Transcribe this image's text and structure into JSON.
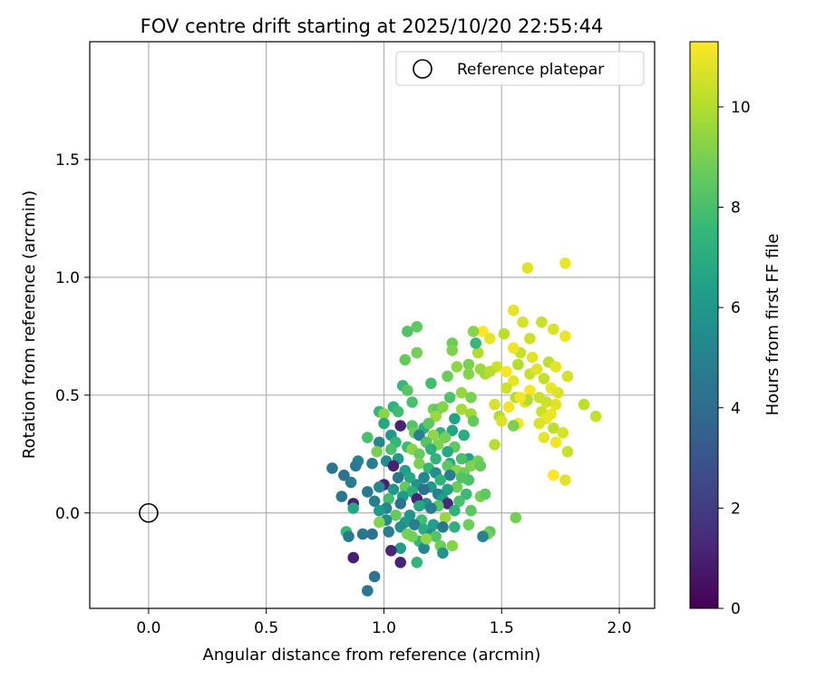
{
  "chart_data": {
    "type": "scatter",
    "title": "FOV centre drift starting at 2025/10/20 22:55:44",
    "xlabel": "Angular distance from reference (arcmin)",
    "ylabel": "Rotation from reference (arcmin)",
    "xlim": [
      -0.25,
      2.15
    ],
    "ylim": [
      -0.405,
      2.0
    ],
    "xticks": [
      0.0,
      0.5,
      1.0,
      1.5,
      2.0
    ],
    "xtick_labels": [
      "0.0",
      "0.5",
      "1.0",
      "1.5",
      "2.0"
    ],
    "yticks": [
      0.0,
      0.5,
      1.0,
      1.5
    ],
    "ytick_labels": [
      "0.0",
      "0.5",
      "1.0",
      "1.5"
    ],
    "grid": true,
    "legend": {
      "position": "top-right",
      "label": "Reference platepar",
      "marker": "open-circle"
    },
    "reference_point": {
      "x": 0.0,
      "y": 0.0
    },
    "colorbar": {
      "label": "Hours from first FF file",
      "cmap": "viridis",
      "range": [
        0,
        11.3
      ],
      "ticks": [
        0,
        2,
        4,
        6,
        8,
        10
      ],
      "tick_labels": [
        "0",
        "2",
        "4",
        "6",
        "8",
        "10"
      ]
    },
    "series": [
      {
        "points": [
          [
            1.77,
            1.06,
            11.0
          ],
          [
            1.61,
            1.04,
            10.8
          ],
          [
            1.55,
            0.86,
            10.9
          ],
          [
            1.59,
            0.81,
            10.6
          ],
          [
            1.67,
            0.81,
            10.4
          ],
          [
            1.42,
            0.77,
            11.3
          ],
          [
            1.72,
            0.78,
            10.7
          ],
          [
            1.51,
            0.76,
            10.2
          ],
          [
            1.77,
            0.75,
            11.0
          ],
          [
            1.62,
            0.74,
            10.5
          ],
          [
            1.45,
            0.74,
            10.9
          ],
          [
            1.58,
            0.68,
            10.3
          ],
          [
            1.4,
            0.68,
            10.0
          ],
          [
            1.55,
            0.7,
            11.1
          ],
          [
            1.63,
            0.66,
            10.8
          ],
          [
            1.7,
            0.64,
            10.2
          ],
          [
            1.57,
            0.63,
            10.0
          ],
          [
            1.48,
            0.62,
            10.5
          ],
          [
            1.73,
            0.62,
            10.9
          ],
          [
            1.52,
            0.6,
            11.2
          ],
          [
            1.62,
            0.59,
            10.4
          ],
          [
            1.78,
            0.58,
            10.6
          ],
          [
            1.43,
            0.59,
            9.8
          ],
          [
            1.68,
            0.57,
            10.3
          ],
          [
            1.55,
            0.56,
            10.9
          ],
          [
            1.71,
            0.53,
            11.0
          ],
          [
            1.52,
            0.53,
            10.5
          ],
          [
            1.62,
            0.52,
            11.2
          ],
          [
            1.74,
            0.51,
            10.7
          ],
          [
            1.56,
            0.49,
            10.1
          ],
          [
            1.66,
            0.49,
            10.4
          ],
          [
            1.6,
            0.47,
            10.9
          ],
          [
            1.47,
            0.46,
            10.6
          ],
          [
            1.85,
            0.46,
            10.2
          ],
          [
            1.73,
            0.46,
            10.8
          ],
          [
            1.53,
            0.45,
            11.1
          ],
          [
            1.67,
            0.43,
            10.5
          ],
          [
            1.49,
            0.41,
            10.0
          ],
          [
            1.69,
            0.4,
            11.0
          ],
          [
            1.9,
            0.41,
            10.3
          ],
          [
            1.57,
            0.38,
            11.2
          ],
          [
            1.66,
            0.38,
            10.7
          ],
          [
            1.72,
            0.36,
            10.2
          ],
          [
            1.76,
            0.34,
            10.6
          ],
          [
            1.68,
            0.32,
            10.9
          ],
          [
            1.73,
            0.3,
            11.1
          ],
          [
            1.47,
            0.29,
            10.1
          ],
          [
            1.78,
            0.26,
            10.4
          ],
          [
            1.72,
            0.16,
            11.3
          ],
          [
            1.77,
            0.14,
            10.8
          ],
          [
            1.55,
            0.37,
            9.0
          ],
          [
            1.56,
            -0.02,
            8.9
          ],
          [
            1.61,
            0.48,
            10.0
          ],
          [
            1.65,
            0.61,
            10.8
          ],
          [
            1.69,
            0.47,
            10.5
          ],
          [
            1.58,
            0.49,
            11.1
          ],
          [
            1.5,
            0.39,
            10.7
          ],
          [
            1.71,
            0.42,
            11.0
          ],
          [
            1.38,
            0.77,
            9.3
          ],
          [
            1.39,
            0.72,
            7.6
          ],
          [
            1.14,
            0.79,
            8.5
          ],
          [
            1.1,
            0.77,
            8.2
          ],
          [
            1.29,
            0.72,
            8.8
          ],
          [
            1.29,
            0.69,
            9.1
          ],
          [
            1.14,
            0.68,
            8.9
          ],
          [
            1.09,
            0.65,
            8.6
          ],
          [
            1.31,
            0.62,
            9.4
          ],
          [
            1.36,
            0.63,
            9.0
          ],
          [
            1.41,
            0.61,
            9.6
          ],
          [
            1.36,
            0.59,
            9.2
          ],
          [
            1.45,
            0.6,
            10.1
          ],
          [
            1.27,
            0.58,
            8.7
          ],
          [
            1.2,
            0.55,
            7.9
          ],
          [
            1.08,
            0.54,
            7.6
          ],
          [
            1.1,
            0.52,
            8.3
          ],
          [
            1.33,
            0.51,
            9.5
          ],
          [
            1.28,
            0.49,
            8.1
          ],
          [
            1.37,
            0.49,
            9.0
          ],
          [
            1.12,
            0.47,
            8.0
          ],
          [
            1.04,
            0.45,
            7.2
          ],
          [
            1.21,
            0.44,
            8.9
          ],
          [
            1.23,
            0.44,
            8.4
          ],
          [
            1.25,
            0.45,
            9.2
          ],
          [
            1.33,
            0.44,
            9.8
          ],
          [
            1.37,
            0.42,
            9.6
          ],
          [
            0.98,
            0.43,
            7.5
          ],
          [
            1.06,
            0.43,
            7.8
          ],
          [
            1.0,
            0.42,
            9.3
          ],
          [
            1.3,
            0.4,
            6.5
          ],
          [
            1.38,
            0.39,
            8.6
          ],
          [
            1.22,
            0.41,
            9.6
          ],
          [
            1.12,
            0.37,
            8.2
          ],
          [
            1.0,
            0.38,
            6.8
          ],
          [
            1.07,
            0.37,
            1.1
          ],
          [
            1.17,
            0.36,
            7.0
          ],
          [
            1.29,
            0.35,
            6.6
          ],
          [
            1.24,
            0.34,
            7.3
          ],
          [
            1.13,
            0.34,
            8.8
          ],
          [
            1.03,
            0.33,
            6.0
          ],
          [
            1.21,
            0.33,
            9.4
          ],
          [
            0.93,
            0.32,
            8.0
          ],
          [
            1.15,
            0.33,
            5.0
          ],
          [
            1.26,
            0.32,
            8.9
          ],
          [
            1.34,
            0.33,
            7.0
          ],
          [
            1.05,
            0.3,
            7.5
          ],
          [
            1.18,
            0.3,
            8.2
          ],
          [
            1.23,
            0.29,
            9.1
          ],
          [
            0.98,
            0.3,
            5.2
          ],
          [
            1.1,
            0.28,
            7.7
          ],
          [
            1.3,
            0.28,
            8.5
          ],
          [
            1.03,
            0.27,
            8.0
          ],
          [
            0.97,
            0.26,
            9.0
          ],
          [
            1.2,
            0.27,
            7.2
          ],
          [
            1.12,
            0.27,
            9.3
          ],
          [
            1.27,
            0.26,
            6.8
          ],
          [
            1.15,
            0.25,
            8.6
          ],
          [
            1.36,
            0.23,
            6.5
          ],
          [
            1.33,
            0.23,
            8.0
          ],
          [
            1.22,
            0.23,
            7.4
          ],
          [
            1.06,
            0.23,
            6.2
          ],
          [
            1.01,
            0.22,
            5.5
          ],
          [
            0.89,
            0.22,
            5.0
          ],
          [
            1.4,
            0.22,
            8.9
          ],
          [
            1.28,
            0.21,
            6.8
          ],
          [
            1.15,
            0.21,
            9.0
          ],
          [
            1.04,
            0.2,
            1.1
          ],
          [
            0.95,
            0.21,
            4.8
          ],
          [
            0.88,
            0.2,
            4.6
          ],
          [
            1.27,
            0.2,
            8.4
          ],
          [
            1.37,
            0.2,
            9.1
          ],
          [
            1.41,
            0.2,
            8.6
          ],
          [
            1.19,
            0.19,
            7.5
          ],
          [
            0.78,
            0.19,
            4.4
          ],
          [
            1.31,
            0.18,
            9.3
          ],
          [
            1.09,
            0.18,
            6.4
          ],
          [
            1.34,
            0.17,
            8.8
          ],
          [
            1.22,
            0.17,
            5.6
          ],
          [
            1.28,
            0.16,
            4.8
          ],
          [
            0.83,
            0.16,
            4.2
          ],
          [
            1.11,
            0.15,
            6.8
          ],
          [
            1.17,
            0.15,
            5.2
          ],
          [
            1.06,
            0.15,
            4.5
          ],
          [
            1.36,
            0.14,
            8.1
          ],
          [
            1.24,
            0.14,
            7.3
          ],
          [
            0.86,
            0.13,
            4.8
          ],
          [
            1.0,
            0.12,
            1.0
          ],
          [
            1.14,
            0.12,
            5.8
          ],
          [
            1.09,
            0.11,
            8.6
          ],
          [
            1.2,
            0.11,
            6.0
          ],
          [
            1.31,
            0.11,
            8.8
          ],
          [
            0.98,
            0.11,
            5.3
          ],
          [
            1.04,
            0.1,
            5.9
          ],
          [
            1.17,
            0.1,
            4.2
          ],
          [
            1.27,
            0.1,
            6.5
          ],
          [
            0.93,
            0.09,
            4.6
          ],
          [
            1.12,
            0.09,
            7.1
          ],
          [
            1.23,
            0.08,
            5.0
          ],
          [
            1.35,
            0.08,
            7.7
          ],
          [
            1.41,
            0.07,
            9.0
          ],
          [
            1.43,
            0.08,
            8.5
          ],
          [
            1.08,
            0.07,
            6.1
          ],
          [
            0.82,
            0.07,
            4.5
          ],
          [
            1.14,
            0.06,
            1.2
          ],
          [
            1.02,
            0.06,
            7.9
          ],
          [
            1.25,
            0.06,
            6.3
          ],
          [
            0.96,
            0.05,
            4.9
          ],
          [
            1.32,
            0.05,
            8.0
          ],
          [
            1.18,
            0.04,
            5.5
          ],
          [
            1.07,
            0.04,
            4.1
          ],
          [
            1.27,
            0.04,
            1.3
          ],
          [
            1.23,
            0.03,
            8.3
          ],
          [
            1.15,
            0.03,
            6.7
          ],
          [
            0.87,
            0.04,
            1.0
          ],
          [
            1.01,
            0.02,
            5.1
          ],
          [
            1.2,
            0.02,
            4.8
          ],
          [
            0.87,
            0.02,
            6.7
          ],
          [
            0.98,
            0.01,
            6.2
          ],
          [
            1.3,
            0.01,
            7.3
          ],
          [
            1.37,
            0.01,
            8.4
          ],
          [
            1.11,
            -0.01,
            5.9
          ],
          [
            1.05,
            -0.01,
            8.6
          ],
          [
            1.26,
            -0.02,
            9.6
          ],
          [
            1.01,
            -0.03,
            5.4
          ],
          [
            1.16,
            -0.03,
            7.8
          ],
          [
            1.09,
            -0.04,
            6.1
          ],
          [
            0.98,
            -0.04,
            9.2
          ],
          [
            1.13,
            -0.05,
            4.9
          ],
          [
            1.21,
            -0.05,
            6.4
          ],
          [
            1.36,
            -0.05,
            8.8
          ],
          [
            1.3,
            -0.06,
            7.2
          ],
          [
            1.25,
            -0.06,
            4.5
          ],
          [
            1.07,
            -0.06,
            5.6
          ],
          [
            1.17,
            -0.07,
            6.9
          ],
          [
            1.02,
            -0.08,
            4.8
          ],
          [
            0.84,
            -0.08,
            7.6
          ],
          [
            1.45,
            -0.08,
            8.4
          ],
          [
            1.44,
            -0.09,
            8.9
          ],
          [
            1.2,
            -0.09,
            5.8
          ],
          [
            1.1,
            -0.09,
            9.0
          ],
          [
            0.95,
            -0.09,
            4.2
          ],
          [
            0.91,
            -0.09,
            4.4
          ],
          [
            1.42,
            -0.1,
            5.0
          ],
          [
            1.22,
            -0.1,
            8.2
          ],
          [
            0.85,
            -0.1,
            4.6
          ],
          [
            1.15,
            -0.12,
            7.5
          ],
          [
            1.24,
            -0.14,
            8.8
          ],
          [
            1.29,
            -0.14,
            9.2
          ],
          [
            1.07,
            -0.15,
            6.3
          ],
          [
            1.17,
            -0.15,
            5.3
          ],
          [
            1.03,
            -0.16,
            1.2
          ],
          [
            1.25,
            -0.17,
            5.8
          ],
          [
            0.87,
            -0.19,
            1.0
          ],
          [
            1.14,
            -0.21,
            7.4
          ],
          [
            1.07,
            -0.21,
            1.1
          ],
          [
            0.96,
            -0.27,
            4.3
          ],
          [
            0.93,
            -0.33,
            4.5
          ],
          [
            1.12,
            -0.1,
            8.9
          ],
          [
            1.18,
            -0.11,
            9.4
          ],
          [
            1.33,
            0.15,
            8.2
          ],
          [
            1.19,
            0.38,
            8.4
          ]
        ]
      }
    ]
  }
}
